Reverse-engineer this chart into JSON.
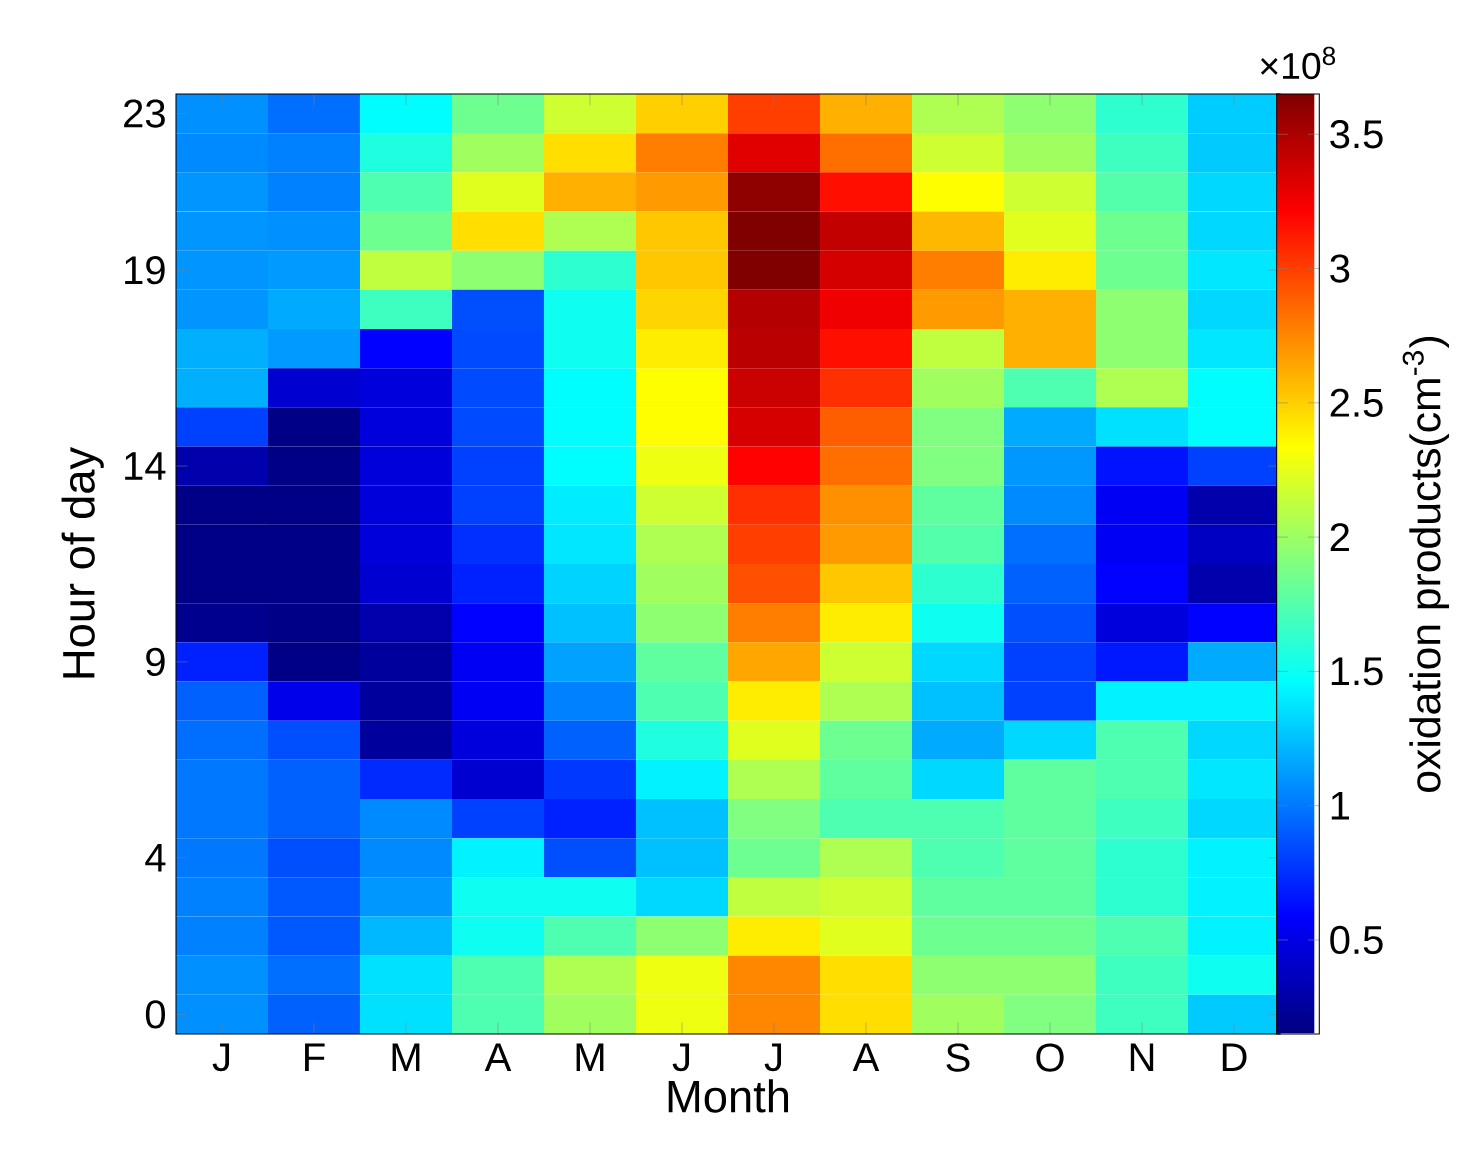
{
  "chart_data": {
    "type": "heatmap",
    "xlabel": "Month",
    "ylabel": "Hour of day",
    "clabel": "oxidation products(cm$^{-3}$)",
    "annotations": [
      "×10$^{8}$"
    ],
    "categories": [
      "J",
      "F",
      "M",
      "A",
      "M",
      "J",
      "J",
      "A",
      "S",
      "O",
      "N",
      "D"
    ],
    "y_categories": [
      "23",
      null,
      null,
      null,
      "19",
      null,
      null,
      null,
      null,
      "14",
      null,
      null,
      null,
      null,
      "9",
      null,
      null,
      null,
      null,
      "4",
      null,
      null,
      null,
      "0"
    ],
    "clim": [
      0.15,
      3.65
    ],
    "cticks": [
      0.5,
      1,
      1.5,
      2,
      2.5,
      3,
      3.5
    ],
    "cells": [
      [
        1.08,
        0.97,
        1.46,
        1.84,
        2.17,
        2.5,
        3.0,
        2.61,
        2.06,
        1.95,
        1.62,
        1.29
      ],
      [
        1.06,
        1.03,
        1.57,
        2.01,
        2.45,
        2.78,
        3.32,
        2.83,
        2.17,
        2.01,
        1.68,
        1.28
      ],
      [
        1.1,
        1.03,
        1.73,
        2.23,
        2.61,
        2.68,
        3.6,
        3.16,
        2.34,
        2.17,
        1.75,
        1.33
      ],
      [
        1.1,
        1.08,
        1.84,
        2.45,
        2.06,
        2.53,
        3.65,
        3.42,
        2.58,
        2.23,
        1.84,
        1.33
      ],
      [
        1.1,
        1.12,
        2.12,
        1.95,
        1.62,
        2.53,
        3.65,
        3.36,
        2.78,
        2.4,
        1.84,
        1.38
      ],
      [
        1.1,
        1.17,
        1.68,
        0.86,
        1.51,
        2.48,
        3.47,
        3.26,
        2.68,
        2.61,
        1.95,
        1.33
      ],
      [
        1.19,
        1.12,
        0.59,
        0.84,
        1.51,
        2.4,
        3.45,
        3.16,
        2.12,
        2.61,
        1.95,
        1.38
      ],
      [
        1.19,
        0.43,
        0.47,
        0.84,
        1.46,
        2.34,
        3.39,
        3.05,
        2.01,
        1.73,
        2.06,
        1.46
      ],
      [
        0.81,
        0.17,
        0.47,
        0.84,
        1.46,
        2.34,
        3.35,
        2.89,
        1.9,
        1.17,
        1.36,
        1.46
      ],
      [
        0.3,
        0.17,
        0.46,
        0.81,
        1.46,
        2.28,
        3.21,
        2.83,
        1.9,
        1.11,
        0.65,
        0.81
      ],
      [
        0.17,
        0.17,
        0.46,
        0.81,
        1.4,
        2.17,
        3.05,
        2.72,
        1.79,
        1.06,
        0.55,
        0.3
      ],
      [
        0.17,
        0.17,
        0.46,
        0.75,
        1.38,
        2.06,
        3.0,
        2.68,
        1.75,
        0.97,
        0.55,
        0.38
      ],
      [
        0.17,
        0.17,
        0.43,
        0.7,
        1.31,
        2.01,
        2.94,
        2.53,
        1.62,
        0.92,
        0.59,
        0.3
      ],
      [
        0.2,
        0.17,
        0.3,
        0.59,
        1.25,
        1.95,
        2.78,
        2.4,
        1.51,
        0.86,
        0.47,
        0.59
      ],
      [
        0.7,
        0.17,
        0.25,
        0.55,
        1.14,
        1.79,
        2.64,
        2.17,
        1.33,
        0.81,
        0.67,
        1.17
      ],
      [
        0.92,
        0.52,
        0.25,
        0.55,
        1.03,
        1.73,
        2.4,
        2.06,
        1.25,
        0.81,
        1.42,
        1.42
      ],
      [
        0.97,
        0.86,
        0.25,
        0.47,
        0.92,
        1.57,
        2.23,
        1.84,
        1.17,
        1.33,
        1.73,
        1.33
      ],
      [
        1.0,
        0.92,
        0.73,
        0.43,
        0.78,
        1.42,
        2.06,
        1.79,
        1.33,
        1.79,
        1.73,
        1.38
      ],
      [
        1.0,
        0.92,
        1.06,
        0.81,
        0.7,
        1.25,
        1.9,
        1.73,
        1.73,
        1.79,
        1.68,
        1.33
      ],
      [
        1.0,
        0.86,
        1.06,
        1.42,
        0.86,
        1.25,
        1.84,
        2.06,
        1.73,
        1.79,
        1.62,
        1.42
      ],
      [
        1.03,
        0.89,
        1.11,
        1.51,
        1.51,
        1.33,
        2.12,
        2.17,
        1.79,
        1.79,
        1.62,
        1.42
      ],
      [
        1.03,
        0.89,
        1.22,
        1.51,
        1.73,
        1.95,
        2.4,
        2.23,
        1.84,
        1.84,
        1.73,
        1.42
      ],
      [
        1.08,
        0.97,
        1.36,
        1.73,
        2.06,
        2.28,
        2.75,
        2.45,
        1.95,
        1.95,
        1.68,
        1.51
      ],
      [
        1.08,
        0.92,
        1.36,
        1.73,
        2.01,
        2.28,
        2.75,
        2.45,
        2.01,
        1.9,
        1.68,
        1.28
      ]
    ]
  }
}
